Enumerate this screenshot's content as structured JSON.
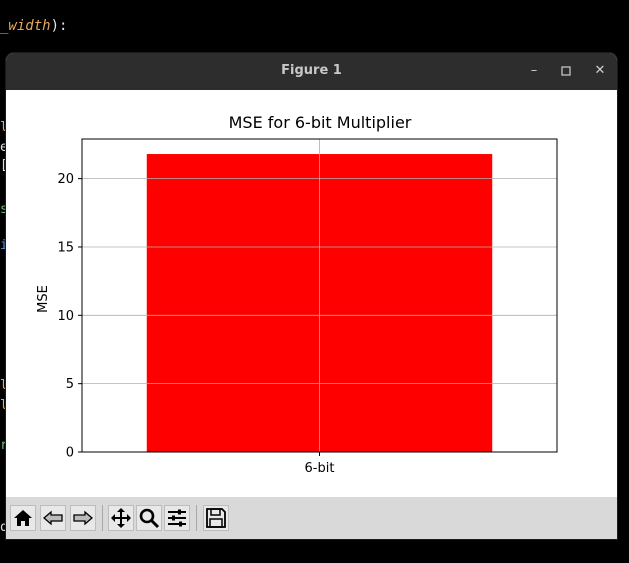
{
  "background_editor": {
    "code_fragment": "_width",
    "code_suffix": "):"
  },
  "window": {
    "title": "Figure 1",
    "controls": {
      "minimize": "–",
      "maximize": "☐",
      "close": "✕"
    }
  },
  "toolbar": {
    "buttons": [
      "home-icon",
      "back-icon",
      "forward-icon",
      "pan-icon",
      "zoom-icon",
      "configure-icon",
      "save-icon"
    ]
  },
  "chart_data": {
    "type": "bar",
    "title": "MSE for 6-bit Multiplier",
    "xlabel": "",
    "ylabel": "MSE",
    "categories": [
      "6-bit"
    ],
    "values": [
      21.8
    ],
    "ylim": [
      0,
      22.9
    ],
    "yticks": [
      0,
      5,
      10,
      15,
      20
    ],
    "grid": true,
    "bar_color": "#ff0000"
  }
}
